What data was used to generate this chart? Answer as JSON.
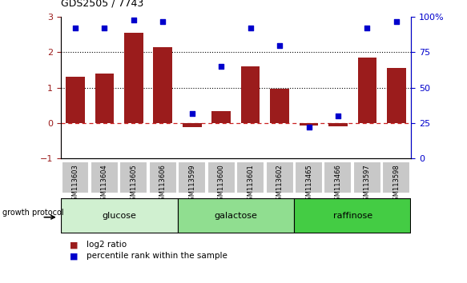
{
  "title": "GDS2505 / 7743",
  "categories": [
    "GSM113603",
    "GSM113604",
    "GSM113605",
    "GSM113606",
    "GSM113599",
    "GSM113600",
    "GSM113601",
    "GSM113602",
    "GSM113465",
    "GSM113466",
    "GSM113597",
    "GSM113598"
  ],
  "log2_ratio": [
    1.3,
    1.4,
    2.55,
    2.15,
    -0.12,
    0.35,
    1.6,
    0.97,
    -0.07,
    -0.08,
    1.85,
    1.55
  ],
  "percentile_rank": [
    92,
    92,
    98,
    97,
    32,
    65,
    92,
    80,
    22,
    30,
    92,
    97
  ],
  "bar_color": "#9b1c1c",
  "dot_color": "#0000cc",
  "zero_line_color": "#cc2222",
  "dotted_line_color": "#000000",
  "ylim_left": [
    -1,
    3
  ],
  "ylim_right": [
    0,
    100
  ],
  "yticks_left": [
    -1,
    0,
    1,
    2,
    3
  ],
  "yticks_right": [
    0,
    25,
    50,
    75,
    100
  ],
  "groups": [
    {
      "label": "glucose",
      "start": 0,
      "end": 4,
      "color": "#d0f0d0"
    },
    {
      "label": "galactose",
      "start": 4,
      "end": 8,
      "color": "#90de90"
    },
    {
      "label": "raffinose",
      "start": 8,
      "end": 12,
      "color": "#44cc44"
    }
  ],
  "legend_bar_label": "log2 ratio",
  "legend_dot_label": "percentile rank within the sample",
  "growth_protocol_label": "growth protocol",
  "xtick_box_color": "#c8c8c8",
  "xtick_box_edge_color": "#ffffff",
  "group_border_color": "#000000"
}
